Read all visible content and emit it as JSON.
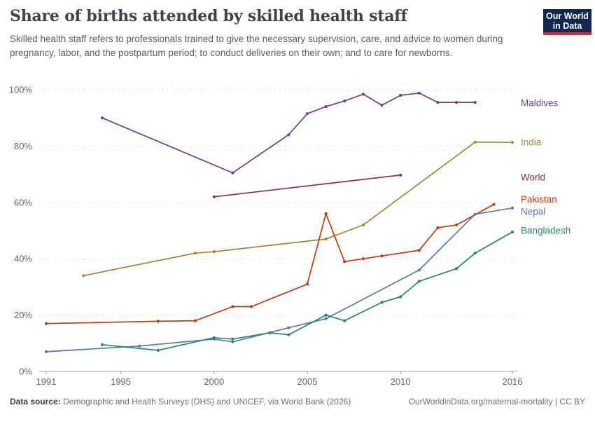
{
  "header": {
    "title": "Share of births attended by skilled health staff",
    "subtitle": "Skilled health staff refers to professionals trained to give the necessary supervision, care, and advice to women during pregnancy, labor, and the postpartum period; to conduct deliveries on their own; and to care for newborns.",
    "logo": {
      "line1": "Our World",
      "line2": "in Data",
      "bg_color": "#12294d",
      "accent_color": "#c0333e"
    }
  },
  "chart_data": {
    "type": "line",
    "title": "Share of births attended by skilled health staff",
    "xlabel": "",
    "ylabel": "",
    "x_axis": {
      "ticks": [
        1991,
        1995,
        2000,
        2005,
        2010,
        2016
      ],
      "range": [
        1990,
        2017
      ]
    },
    "y_axis": {
      "tick_values": [
        0,
        20,
        40,
        60,
        80,
        100
      ],
      "tick_labels": [
        "0%",
        "20%",
        "40%",
        "60%",
        "80%",
        "100%"
      ],
      "range": [
        0,
        100
      ],
      "grid": "dashed"
    },
    "legend_position": "right",
    "series": [
      {
        "name": "Maldives",
        "color": "#6d3e91",
        "label_dy": 1,
        "points": [
          [
            1994,
            90
          ],
          [
            2001,
            70.5
          ],
          [
            2004,
            84
          ],
          [
            2005,
            91.5
          ],
          [
            2006,
            94
          ],
          [
            2007,
            96
          ],
          [
            2008,
            98.4
          ],
          [
            2009,
            94.5
          ],
          [
            2010,
            98
          ],
          [
            2011,
            98.8
          ],
          [
            2012,
            95.5
          ],
          [
            2013,
            95.5
          ],
          [
            2014,
            95.5
          ]
        ]
      },
      {
        "name": "India",
        "color": "#a2843b",
        "label_dy": 0,
        "points": [
          [
            1993,
            34
          ],
          [
            1999,
            42
          ],
          [
            2000,
            42.5
          ],
          [
            2006,
            47
          ],
          [
            2008,
            52
          ],
          [
            2014,
            81.4
          ],
          [
            2016,
            81.3
          ]
        ]
      },
      {
        "name": "World",
        "color": "#883039",
        "label_dy": 3,
        "points": [
          [
            2000,
            62
          ],
          [
            2010,
            69.7
          ]
        ]
      },
      {
        "name": "Pakistan",
        "color": "#bf3a0e",
        "label_dy": -7,
        "points": [
          [
            1991,
            17
          ],
          [
            1997,
            17.8
          ],
          [
            1999,
            18
          ],
          [
            2001,
            23
          ],
          [
            2002,
            23
          ],
          [
            2005,
            31
          ],
          [
            2006,
            56
          ],
          [
            2007,
            39
          ],
          [
            2008,
            40
          ],
          [
            2009,
            41
          ],
          [
            2011,
            43
          ],
          [
            2012,
            51
          ],
          [
            2013,
            52
          ],
          [
            2015,
            59.3
          ]
        ]
      },
      {
        "name": "Nepal",
        "color": "#5877a9",
        "label_dy": 5,
        "points": [
          [
            1991,
            7
          ],
          [
            1996,
            9
          ],
          [
            2000,
            11.5
          ],
          [
            2001,
            10.5
          ],
          [
            2004,
            15.5
          ],
          [
            2006,
            18.7
          ],
          [
            2011,
            36
          ],
          [
            2014,
            55.8
          ],
          [
            2016,
            58
          ]
        ]
      },
      {
        "name": "Bangladesh",
        "color": "#2c8465",
        "label_dy": -2,
        "points": [
          [
            1994,
            9.5
          ],
          [
            1997,
            7.5
          ],
          [
            2000,
            12
          ],
          [
            2001,
            11.5
          ],
          [
            2003,
            13.7
          ],
          [
            2004,
            13
          ],
          [
            2006,
            20
          ],
          [
            2007,
            18
          ],
          [
            2009,
            24.5
          ],
          [
            2010,
            26.5
          ],
          [
            2011,
            32
          ],
          [
            2013,
            36.5
          ],
          [
            2014,
            42
          ],
          [
            2016,
            49.5
          ]
        ]
      }
    ]
  },
  "footer": {
    "datasource_label": "Data source:",
    "datasource_text": " Demographic and Health Surveys (DHS) and UNICEF, via World Bank (2026)",
    "link_text": "OurWorldinData.org/maternal-mortality | CC BY"
  }
}
